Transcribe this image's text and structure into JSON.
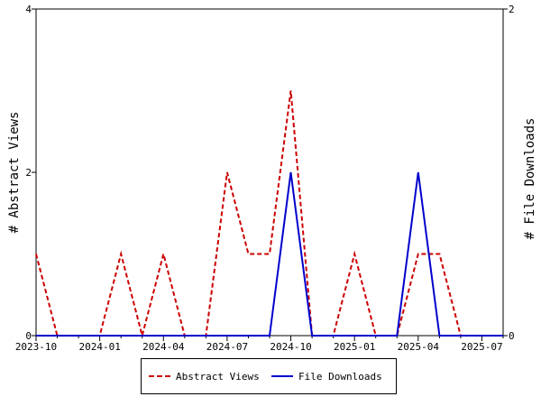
{
  "chart_data": {
    "type": "line",
    "x": [
      "2023-10",
      "2023-11",
      "2023-12",
      "2024-01",
      "2024-02",
      "2024-03",
      "2024-04",
      "2024-05",
      "2024-06",
      "2024-07",
      "2024-08",
      "2024-09",
      "2024-10",
      "2024-11",
      "2024-12",
      "2025-01",
      "2025-02",
      "2025-03",
      "2025-04",
      "2025-05",
      "2025-06",
      "2025-07",
      "2025-08"
    ],
    "x_tick_labels": [
      "2023-10",
      "2024-01",
      "2024-04",
      "2024-07",
      "2024-10",
      "2025-01",
      "2025-04",
      "2025-07"
    ],
    "ylabel_left": "# Abstract Views",
    "ylabel_right": "# File Downloads",
    "ylim_left": [
      0,
      4
    ],
    "ylim_right": [
      0,
      2
    ],
    "y_ticks_left": [
      "0",
      "2",
      "4"
    ],
    "y_ticks_right": [
      "0",
      "2"
    ],
    "grid": false,
    "legend_position": "bottom",
    "series": [
      {
        "name": "Abstract Views",
        "axis": "left",
        "style": "dashed",
        "color": "#cc0000",
        "values": [
          1,
          0,
          0,
          0,
          1,
          0,
          1,
          0,
          0,
          2,
          1,
          1,
          3,
          0,
          0,
          1,
          0,
          0,
          1,
          1,
          0,
          0,
          0
        ]
      },
      {
        "name": "File Downloads",
        "axis": "right",
        "style": "solid",
        "color": "#0000cc",
        "values": [
          0,
          0,
          0,
          0,
          0,
          0,
          0,
          0,
          0,
          0,
          0,
          0,
          1,
          0,
          0,
          0,
          0,
          0,
          1,
          0,
          0,
          0,
          0
        ]
      }
    ]
  }
}
